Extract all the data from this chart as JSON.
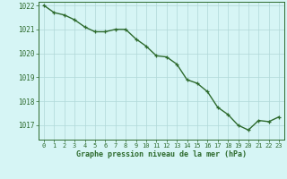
{
  "x": [
    0,
    1,
    2,
    3,
    4,
    5,
    6,
    7,
    8,
    9,
    10,
    11,
    12,
    13,
    14,
    15,
    16,
    17,
    18,
    19,
    20,
    21,
    22,
    23
  ],
  "y": [
    1022.0,
    1021.7,
    1021.6,
    1021.4,
    1021.1,
    1020.9,
    1020.9,
    1021.0,
    1021.0,
    1020.6,
    1020.3,
    1019.9,
    1019.85,
    1019.55,
    1018.9,
    1018.75,
    1018.4,
    1017.75,
    1017.45,
    1017.0,
    1016.8,
    1017.2,
    1017.15,
    1017.35
  ],
  "line_color": "#2d6a2d",
  "marker": "+",
  "bg_color": "#d6f5f5",
  "grid_color": "#b0d8d8",
  "xlabel": "Graphe pression niveau de la mer (hPa)",
  "xlabel_color": "#2d6a2d",
  "axis_color": "#2d6a2d",
  "tick_label_color": "#2d6a2d",
  "ylim": [
    1016.4,
    1022.15
  ],
  "yticks": [
    1017,
    1018,
    1019,
    1020,
    1021,
    1022
  ],
  "xtick_labels": [
    "0",
    "1",
    "2",
    "3",
    "4",
    "5",
    "6",
    "7",
    "8",
    "9",
    "10",
    "11",
    "12",
    "13",
    "14",
    "15",
    "16",
    "17",
    "18",
    "19",
    "20",
    "21",
    "22",
    "23"
  ],
  "linewidth": 1.0,
  "markersize": 3.5
}
